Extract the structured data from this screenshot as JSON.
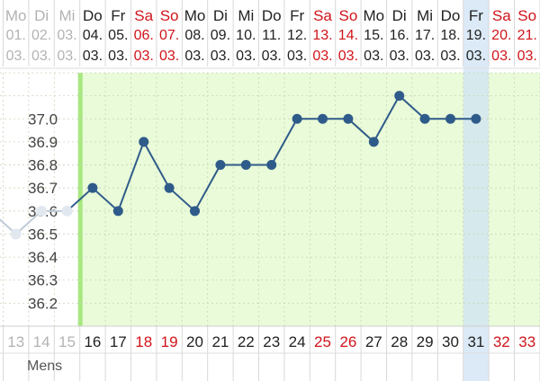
{
  "chart_data": {
    "type": "line",
    "series": [
      {
        "x": [
          12,
          13,
          14,
          15,
          16,
          17,
          18,
          19,
          20,
          21,
          22,
          23,
          24,
          25,
          26,
          27,
          28,
          29,
          30,
          31
        ],
        "values": [
          36.6,
          36.5,
          36.6,
          36.6,
          36.7,
          36.6,
          36.9,
          36.7,
          36.6,
          36.8,
          36.8,
          36.8,
          37.0,
          37.0,
          37.0,
          36.9,
          37.1,
          37.0,
          37.0,
          37.0
        ]
      }
    ],
    "ylim": [
      36.1,
      37.2
    ],
    "yticks": [
      "37.0",
      "36.9",
      "36.8",
      "36.7",
      "36.6",
      "36.5",
      "36.4",
      "36.3",
      "36.2"
    ],
    "grid": true,
    "selected_cycle_day": 31
  },
  "columns": [
    {
      "weekday": "Mo",
      "date": "01.",
      "month": "03.",
      "cycle_day": "13",
      "weekend": false
    },
    {
      "weekday": "Di",
      "date": "02.",
      "month": "03.",
      "cycle_day": "14",
      "weekend": false
    },
    {
      "weekday": "Mi",
      "date": "03.",
      "month": "03.",
      "cycle_day": "15",
      "weekend": false
    },
    {
      "weekday": "Do",
      "date": "04.",
      "month": "03.",
      "cycle_day": "16",
      "weekend": false
    },
    {
      "weekday": "Fr",
      "date": "05.",
      "month": "03.",
      "cycle_day": "17",
      "weekend": false
    },
    {
      "weekday": "Sa",
      "date": "06.",
      "month": "03.",
      "cycle_day": "18",
      "weekend": true
    },
    {
      "weekday": "So",
      "date": "07.",
      "month": "03.",
      "cycle_day": "19",
      "weekend": true
    },
    {
      "weekday": "Mo",
      "date": "08.",
      "month": "03.",
      "cycle_day": "20",
      "weekend": false
    },
    {
      "weekday": "Di",
      "date": "09.",
      "month": "03.",
      "cycle_day": "21",
      "weekend": false
    },
    {
      "weekday": "Mi",
      "date": "10.",
      "month": "03.",
      "cycle_day": "22",
      "weekend": false
    },
    {
      "weekday": "Do",
      "date": "11.",
      "month": "03.",
      "cycle_day": "23",
      "weekend": false
    },
    {
      "weekday": "Fr",
      "date": "12.",
      "month": "03.",
      "cycle_day": "24",
      "weekend": false
    },
    {
      "weekday": "Sa",
      "date": "13.",
      "month": "03.",
      "cycle_day": "25",
      "weekend": true
    },
    {
      "weekday": "So",
      "date": "14.",
      "month": "03.",
      "cycle_day": "26",
      "weekend": true
    },
    {
      "weekday": "Mo",
      "date": "15.",
      "month": "03.",
      "cycle_day": "27",
      "weekend": false
    },
    {
      "weekday": "Di",
      "date": "16.",
      "month": "03.",
      "cycle_day": "28",
      "weekend": false
    },
    {
      "weekday": "Mi",
      "date": "17.",
      "month": "03.",
      "cycle_day": "29",
      "weekend": false
    },
    {
      "weekday": "Do",
      "date": "18.",
      "month": "03.",
      "cycle_day": "30",
      "weekend": false
    },
    {
      "weekday": "Fr",
      "date": "19.",
      "month": "03.",
      "cycle_day": "31",
      "weekend": false
    },
    {
      "weekday": "Sa",
      "date": "20.",
      "month": "03.",
      "cycle_day": "32",
      "weekend": true
    },
    {
      "weekday": "So",
      "date": "21.",
      "month": "03.",
      "cycle_day": "33",
      "weekend": true
    }
  ],
  "row_labels": {
    "mens": "Mens"
  },
  "colors": {
    "fertile_fill": "#e9fbd8",
    "fertile_edge": "#a6e87e",
    "line": "#2f5b8a",
    "faded_line": "#bfcbd9",
    "weekend_text": "#d0141a",
    "weekday_text": "#222222",
    "selected_column": "#cfe3f3"
  }
}
